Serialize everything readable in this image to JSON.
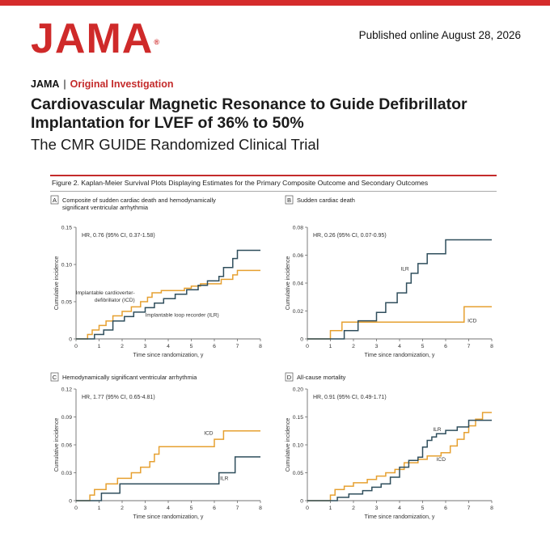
{
  "brand": {
    "logo": "JAMA",
    "logo_mark": "®",
    "color": "#cf2a2a"
  },
  "header": {
    "published": "Published online August 28, 2026",
    "journal": "JAMA",
    "separator": "|",
    "section": "Original Investigation"
  },
  "article": {
    "title": "Cardiovascular Magnetic Resonance to Guide Defibrillator Implantation for LVEF of 36% to 50%",
    "subtitle": "The CMR GUIDE Randomized Clinical Trial"
  },
  "figure": {
    "caption": "Figure 2. Kaplan-Meier Survival Plots Displaying Estimates for the Primary Composite Outcome and Secondary Outcomes",
    "colors": {
      "icd": "#e6a030",
      "ilr": "#2f4e5c"
    }
  },
  "chart_data": [
    {
      "type": "line",
      "panel_letter": "A",
      "panel_title_lines": [
        "Composite of sudden cardiac death and hemodynamically",
        "significant ventricular arrhythmia"
      ],
      "hr_text": "HR, 0.76 (95% CI, 0.37-1.58)",
      "xlabel": "Time since randomization, y",
      "ylabel": "Cumulative incidence",
      "xlim": [
        0,
        8
      ],
      "ylim": [
        0,
        0.15
      ],
      "xticks": [
        "0",
        "1",
        "2",
        "3",
        "4",
        "5",
        "6",
        "7",
        "8"
      ],
      "yticks": [
        {
          "v": 0,
          "label": "0"
        },
        {
          "v": 0.05,
          "label": "0.05"
        },
        {
          "v": 0.1,
          "label": "0.10"
        },
        {
          "v": 0.15,
          "label": "0.15"
        }
      ],
      "series": [
        {
          "name": "Implantable cardioverter-defibrillator (ICD)",
          "color": "#e6a030",
          "x": [
            0,
            0.5,
            0.7,
            1.0,
            1.3,
            1.6,
            2.0,
            2.4,
            2.8,
            3.1,
            3.3,
            3.7,
            4.2,
            4.7,
            5.0,
            5.4,
            6.3,
            6.8,
            7.0,
            8.0
          ],
          "y": [
            0,
            0.006,
            0.012,
            0.018,
            0.024,
            0.031,
            0.037,
            0.043,
            0.05,
            0.056,
            0.062,
            0.065,
            0.065,
            0.068,
            0.071,
            0.074,
            0.08,
            0.086,
            0.092,
            0.092
          ]
        },
        {
          "name": "Implantable loop recorder (ILR)",
          "color": "#2f4e5c",
          "x": [
            0,
            0.8,
            1.2,
            1.6,
            2.1,
            2.5,
            3.0,
            3.4,
            3.8,
            4.3,
            4.8,
            5.3,
            5.7,
            6.2,
            6.4,
            6.8,
            7.0,
            8.0
          ],
          "y": [
            0,
            0.006,
            0.012,
            0.024,
            0.03,
            0.036,
            0.042,
            0.048,
            0.054,
            0.06,
            0.066,
            0.072,
            0.078,
            0.084,
            0.096,
            0.108,
            0.119,
            0.119
          ]
        }
      ],
      "labels": [
        {
          "text_lines": [
            "Implantable cardioverter-",
            "defibrillator (ICD)"
          ],
          "x": 2.55,
          "y": 0.06,
          "anchor": "end"
        },
        {
          "text_lines": [
            "Implantable loop recorder (ILR)"
          ],
          "x": 3.0,
          "y": 0.03,
          "anchor": "start"
        }
      ]
    },
    {
      "type": "line",
      "panel_letter": "B",
      "panel_title_lines": [
        "Sudden cardiac death"
      ],
      "hr_text": "HR, 0.26 (95% CI, 0.07-0.95)",
      "xlabel": "Time since randomization, y",
      "ylabel": "Cumulative incidence",
      "xlim": [
        0,
        8
      ],
      "ylim": [
        0,
        0.08
      ],
      "xticks": [
        "0",
        "1",
        "2",
        "3",
        "4",
        "5",
        "6",
        "7",
        "8"
      ],
      "yticks": [
        {
          "v": 0,
          "label": "0"
        },
        {
          "v": 0.02,
          "label": "0.02"
        },
        {
          "v": 0.04,
          "label": "0.04"
        },
        {
          "v": 0.06,
          "label": "0.06"
        },
        {
          "v": 0.08,
          "label": "0.08"
        }
      ],
      "series": [
        {
          "name": "ICD",
          "color": "#e6a030",
          "x": [
            0,
            1.0,
            1.5,
            6.8,
            8.0
          ],
          "y": [
            0,
            0.006,
            0.012,
            0.023,
            0.023
          ]
        },
        {
          "name": "ILR",
          "color": "#2f4e5c",
          "x": [
            0,
            1.6,
            2.2,
            3.0,
            3.4,
            3.9,
            4.3,
            4.5,
            4.8,
            5.2,
            6.0,
            8.0
          ],
          "y": [
            0,
            0.006,
            0.013,
            0.019,
            0.026,
            0.033,
            0.04,
            0.047,
            0.054,
            0.061,
            0.071,
            0.071
          ]
        }
      ],
      "labels": [
        {
          "text_lines": [
            "ILR"
          ],
          "x": 4.05,
          "y": 0.049,
          "anchor": "start"
        },
        {
          "text_lines": [
            "ICD"
          ],
          "x": 6.95,
          "y": 0.012,
          "anchor": "start"
        }
      ]
    },
    {
      "type": "line",
      "panel_letter": "C",
      "panel_title_lines": [
        "Hemodynamically significant ventricular arrhythmia"
      ],
      "hr_text": "HR, 1.77 (95% CI, 0.65-4.81)",
      "xlabel": "Time since randomization, y",
      "ylabel": "Cumulative incidence",
      "xlim": [
        0,
        8
      ],
      "ylim": [
        0,
        0.12
      ],
      "xticks": [
        "0",
        "1",
        "2",
        "3",
        "4",
        "5",
        "6",
        "7",
        "8"
      ],
      "yticks": [
        {
          "v": 0,
          "label": "0"
        },
        {
          "v": 0.03,
          "label": "0.03"
        },
        {
          "v": 0.06,
          "label": "0.06"
        },
        {
          "v": 0.09,
          "label": "0.09"
        },
        {
          "v": 0.12,
          "label": "0.12"
        }
      ],
      "series": [
        {
          "name": "ICD",
          "color": "#e6a030",
          "x": [
            0,
            0.6,
            0.8,
            1.3,
            1.8,
            2.4,
            2.8,
            3.2,
            3.4,
            3.6,
            6.0,
            6.4,
            8.0
          ],
          "y": [
            0,
            0.006,
            0.012,
            0.018,
            0.024,
            0.03,
            0.036,
            0.042,
            0.05,
            0.058,
            0.066,
            0.075,
            0.075
          ]
        },
        {
          "name": "ILR",
          "color": "#2f4e5c",
          "x": [
            0,
            1.1,
            1.9,
            6.2,
            6.9,
            8.0
          ],
          "y": [
            0,
            0.008,
            0.018,
            0.03,
            0.047,
            0.047
          ]
        }
      ],
      "labels": [
        {
          "text_lines": [
            "ICD"
          ],
          "x": 5.95,
          "y": 0.071,
          "anchor": "end"
        },
        {
          "text_lines": [
            "ILR"
          ],
          "x": 6.25,
          "y": 0.022,
          "anchor": "start"
        }
      ]
    },
    {
      "type": "line",
      "panel_letter": "D",
      "panel_title_lines": [
        "All-cause mortality"
      ],
      "hr_text": "HR, 0.91 (95% CI, 0.49-1.71)",
      "xlabel": "Time since randomization, y",
      "ylabel": "Cumulative incidence",
      "xlim": [
        0,
        8
      ],
      "ylim": [
        0,
        0.2
      ],
      "xticks": [
        "0",
        "1",
        "2",
        "3",
        "4",
        "5",
        "6",
        "7",
        "8"
      ],
      "yticks": [
        {
          "v": 0,
          "label": "0"
        },
        {
          "v": 0.05,
          "label": "0.05"
        },
        {
          "v": 0.1,
          "label": "0.10"
        },
        {
          "v": 0.15,
          "label": "0.15"
        },
        {
          "v": 0.2,
          "label": "0.20"
        }
      ],
      "series": [
        {
          "name": "ICD",
          "color": "#e6a030",
          "x": [
            0,
            1.0,
            1.2,
            1.6,
            2.0,
            2.6,
            3.0,
            3.4,
            3.8,
            4.2,
            4.8,
            5.2,
            5.8,
            6.2,
            6.5,
            6.8,
            7.0,
            7.3,
            7.6,
            8.0
          ],
          "y": [
            0,
            0.01,
            0.02,
            0.026,
            0.032,
            0.038,
            0.044,
            0.05,
            0.056,
            0.068,
            0.074,
            0.08,
            0.086,
            0.098,
            0.11,
            0.122,
            0.134,
            0.146,
            0.158,
            0.158
          ]
        },
        {
          "name": "ILR",
          "color": "#2f4e5c",
          "x": [
            0,
            1.3,
            1.8,
            2.4,
            2.8,
            3.2,
            3.6,
            4.0,
            4.4,
            4.8,
            5.0,
            5.2,
            5.4,
            5.6,
            6.0,
            6.5,
            7.0,
            8.0
          ],
          "y": [
            0,
            0.006,
            0.012,
            0.018,
            0.024,
            0.03,
            0.042,
            0.06,
            0.072,
            0.078,
            0.096,
            0.108,
            0.114,
            0.12,
            0.126,
            0.132,
            0.144,
            0.144
          ]
        }
      ],
      "labels": [
        {
          "text_lines": [
            "ILR"
          ],
          "x": 5.45,
          "y": 0.125,
          "anchor": "start"
        },
        {
          "text_lines": [
            "ICD"
          ],
          "x": 5.6,
          "y": 0.071,
          "anchor": "start"
        }
      ]
    }
  ]
}
